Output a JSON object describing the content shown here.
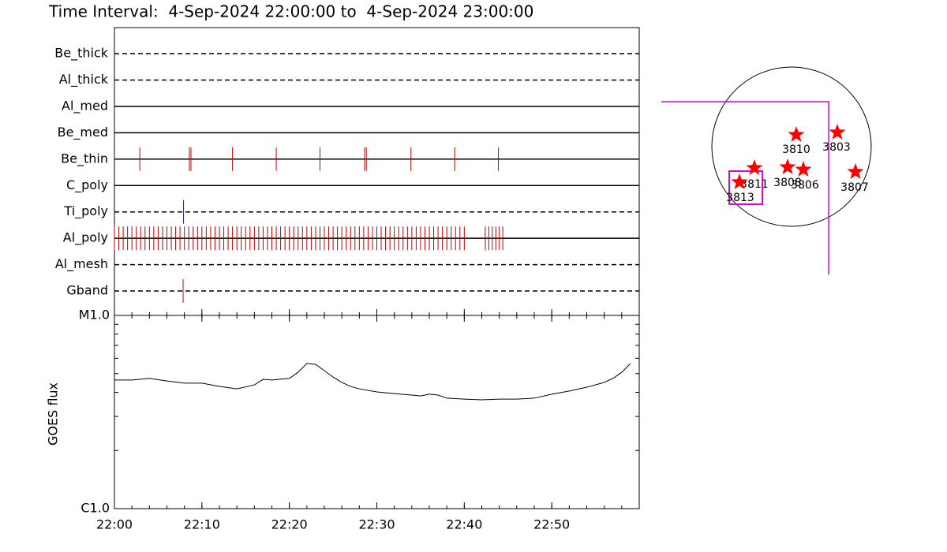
{
  "title": "Time Interval:  4-Sep-2024 22:00:00 to  4-Sep-2024 23:00:00",
  "chart_data": [
    {
      "type": "timeline",
      "xlim": [
        "22:00",
        "23:00"
      ],
      "filters": [
        {
          "name": "Be_thick",
          "line": "dashed",
          "color": "#c00000",
          "events": []
        },
        {
          "name": "Al_thick",
          "line": "dashed",
          "color": "#c00000",
          "events": []
        },
        {
          "name": "Al_med",
          "line": "solid",
          "color": "#c00000",
          "events": []
        },
        {
          "name": "Be_med",
          "line": "solid",
          "color": "#c00000",
          "events": []
        },
        {
          "name": "Be_thin",
          "line": "solid",
          "color": "#c00000",
          "events": [
            "22:02:54",
            "22:08:34",
            "22:08:45",
            "22:13:30",
            "22:18:30",
            "22:23:30",
            "22:28:36",
            "22:28:48",
            "22:33:54",
            "22:38:54",
            "22:43:54"
          ]
        },
        {
          "name": "C_poly",
          "line": "solid",
          "color": "#c00000",
          "events": []
        },
        {
          "name": "Ti_poly",
          "line": "dashed",
          "color": "#2020a0",
          "events": [
            "22:07:54"
          ]
        },
        {
          "name": "Al_poly",
          "line": "solid",
          "color": "#c00000",
          "events": [
            "22:00:00",
            "22:00:30",
            "22:01:00",
            "22:01:30",
            "22:02:00",
            "22:02:30",
            "22:03:00",
            "22:03:30",
            "22:04:00",
            "22:04:30",
            "22:05:00",
            "22:05:30",
            "22:06:00",
            "22:06:30",
            "22:07:00",
            "22:07:30",
            "22:08:00",
            "22:08:30",
            "22:09:00",
            "22:09:30",
            "22:10:00",
            "22:10:30",
            "22:11:00",
            "22:11:30",
            "22:12:00",
            "22:12:30",
            "22:13:00",
            "22:13:30",
            "22:14:00",
            "22:14:30",
            "22:15:00",
            "22:15:30",
            "22:16:00",
            "22:16:30",
            "22:17:00",
            "22:17:30",
            "22:18:00",
            "22:18:30",
            "22:19:00",
            "22:19:30",
            "22:20:00",
            "22:20:30",
            "22:21:00",
            "22:21:30",
            "22:22:00",
            "22:22:30",
            "22:23:00",
            "22:23:30",
            "22:24:00",
            "22:24:30",
            "22:25:00",
            "22:25:30",
            "22:26:00",
            "22:26:30",
            "22:27:00",
            "22:27:30",
            "22:28:00",
            "22:28:30",
            "22:29:00",
            "22:29:30",
            "22:30:00",
            "22:30:30",
            "22:31:00",
            "22:31:30",
            "22:32:00",
            "22:32:30",
            "22:33:00",
            "22:33:30",
            "22:34:00",
            "22:34:30",
            "22:35:00",
            "22:35:30",
            "22:36:00",
            "22:36:30",
            "22:37:00",
            "22:37:30",
            "22:38:00",
            "22:38:30",
            "22:39:00",
            "22:39:30",
            "22:40:00",
            "22:42:24",
            "22:42:48",
            "22:43:12",
            "22:43:36",
            "22:44:00",
            "22:44:24"
          ]
        },
        {
          "name": "Al_mesh",
          "line": "dashed",
          "color": "#c00000",
          "events": []
        },
        {
          "name": "Gband",
          "line": "dashed",
          "color": "#c00000",
          "events": [
            "22:07:51"
          ]
        }
      ]
    },
    {
      "type": "line",
      "ylabel": "GOES flux",
      "log_y": true,
      "xlim": [
        "22:00",
        "23:00"
      ],
      "xticks": [
        "22:00",
        "22:10",
        "22:20",
        "22:30",
        "22:40",
        "22:50"
      ],
      "ylim": [
        1e-06,
        1e-05
      ],
      "yticks": [
        {
          "value": 1e-06,
          "label": "C1.0"
        },
        {
          "value": 1e-05,
          "label": "M1.0"
        }
      ],
      "x": [
        "22:00",
        "22:02",
        "22:04",
        "22:06",
        "22:08",
        "22:10",
        "22:12",
        "22:14",
        "22:16",
        "22:17",
        "22:18",
        "22:20",
        "22:21",
        "22:22",
        "22:23",
        "22:24",
        "22:25",
        "22:26",
        "22:27",
        "22:28",
        "22:30",
        "22:32",
        "22:34",
        "22:35",
        "22:36",
        "22:37",
        "22:38",
        "22:40",
        "22:42",
        "22:44",
        "22:46",
        "22:48",
        "22:50",
        "22:52",
        "22:54",
        "22:56",
        "22:57",
        "22:58",
        "22:59"
      ],
      "series": [
        {
          "color": "#000000",
          "values": [
            4.63e-06,
            4.63e-06,
            4.72e-06,
            4.58e-06,
            4.46e-06,
            4.46e-06,
            4.29e-06,
            4.17e-06,
            4.37e-06,
            4.67e-06,
            4.63e-06,
            4.72e-06,
            5.08e-06,
            5.64e-06,
            5.58e-06,
            5.18e-06,
            4.8e-06,
            4.5e-06,
            4.29e-06,
            4.17e-06,
            4.02e-06,
            3.94e-06,
            3.87e-06,
            3.83e-06,
            3.91e-06,
            3.87e-06,
            3.73e-06,
            3.69e-06,
            3.66e-06,
            3.69e-06,
            3.69e-06,
            3.73e-06,
            3.91e-06,
            4.06e-06,
            4.25e-06,
            4.5e-06,
            4.72e-06,
            5.08e-06,
            5.64e-06
          ]
        }
      ]
    }
  ],
  "map": {
    "regions": [
      {
        "label": "3810"
      },
      {
        "label": "3803"
      },
      {
        "label": "3811"
      },
      {
        "label": "3808"
      },
      {
        "label": "3806"
      },
      {
        "label": "3807"
      },
      {
        "label": "3813"
      }
    ]
  }
}
